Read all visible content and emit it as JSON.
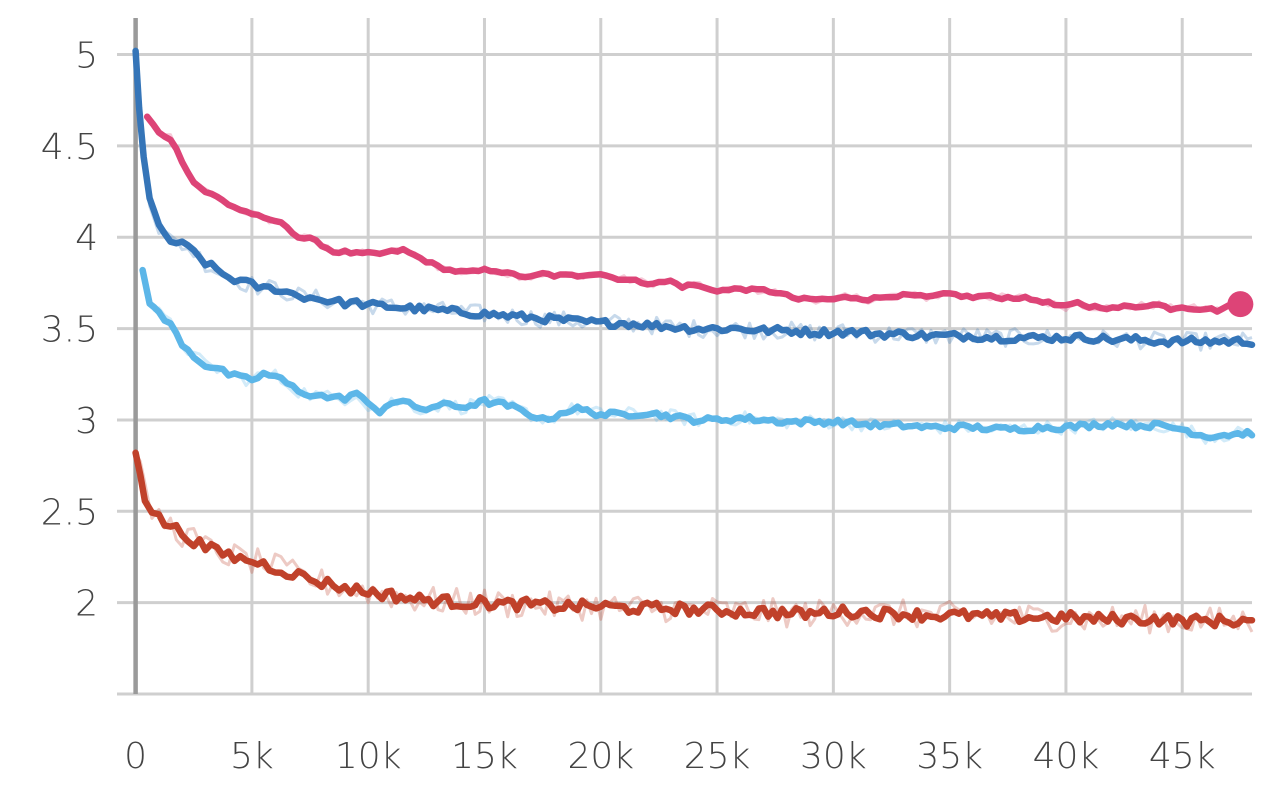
{
  "chart_data": {
    "type": "line",
    "title": "",
    "xlabel": "",
    "ylabel": "",
    "xlim": [
      -800,
      48000
    ],
    "ylim": [
      1.5,
      5.2
    ],
    "grid": true,
    "x_ticks": [
      {
        "value": 0,
        "label": "0"
      },
      {
        "value": 5000,
        "label": "5k"
      },
      {
        "value": 10000,
        "label": "10k"
      },
      {
        "value": 15000,
        "label": "15k"
      },
      {
        "value": 20000,
        "label": "20k"
      },
      {
        "value": 25000,
        "label": "25k"
      },
      {
        "value": 30000,
        "label": "30k"
      },
      {
        "value": 35000,
        "label": "35k"
      },
      {
        "value": 40000,
        "label": "40k"
      },
      {
        "value": 45000,
        "label": "45k"
      }
    ],
    "y_ticks": [
      {
        "value": 5,
        "label": "5"
      },
      {
        "value": 4.5,
        "label": "4.5"
      },
      {
        "value": 4,
        "label": "4"
      },
      {
        "value": 3.5,
        "label": "3.5"
      },
      {
        "value": 3,
        "label": "3"
      },
      {
        "value": 2.5,
        "label": "2.5"
      },
      {
        "value": 2,
        "label": "2"
      }
    ],
    "series": [
      {
        "color": "#dd4477",
        "noise": 0.02,
        "endpoint_marker": true,
        "x": [
          500,
          1000,
          1500,
          2000,
          2500,
          3000,
          3500,
          4000,
          4500,
          5000,
          5500,
          6000,
          6500,
          7000,
          7500,
          8000,
          8500,
          9000,
          9500,
          10000,
          10500,
          11000,
          11500,
          12000,
          12500,
          13000,
          13500,
          14000,
          14500,
          15000,
          15500,
          16000,
          16500,
          17000,
          17500,
          18000,
          18500,
          19000,
          19500,
          20000,
          20500,
          21000,
          21500,
          22000,
          22500,
          23000,
          23500,
          24000,
          24500,
          25000,
          25500,
          26000,
          26500,
          27000,
          27500,
          28000,
          28500,
          29000,
          29500,
          30000,
          30500,
          31000,
          31500,
          32000,
          32500,
          33000,
          33500,
          34000,
          34500,
          35000,
          35500,
          36000,
          36500,
          37000,
          37500,
          38000,
          38500,
          39000,
          39500,
          40000,
          40500,
          41000,
          41500,
          42000,
          42500,
          43000,
          43500,
          44000,
          44500,
          45000,
          45500,
          46000,
          46500,
          47000,
          47500
        ],
        "y": [
          4.66,
          4.57,
          4.54,
          4.42,
          4.3,
          4.25,
          4.22,
          4.18,
          4.15,
          4.13,
          4.1,
          4.09,
          4.06,
          4.0,
          3.99,
          3.96,
          3.92,
          3.92,
          3.91,
          3.91,
          3.91,
          3.92,
          3.93,
          3.9,
          3.87,
          3.84,
          3.82,
          3.81,
          3.81,
          3.82,
          3.82,
          3.8,
          3.79,
          3.78,
          3.8,
          3.79,
          3.79,
          3.79,
          3.8,
          3.8,
          3.78,
          3.77,
          3.76,
          3.75,
          3.75,
          3.76,
          3.73,
          3.74,
          3.72,
          3.71,
          3.71,
          3.72,
          3.71,
          3.71,
          3.7,
          3.68,
          3.66,
          3.66,
          3.66,
          3.66,
          3.67,
          3.67,
          3.66,
          3.67,
          3.68,
          3.68,
          3.68,
          3.67,
          3.68,
          3.69,
          3.68,
          3.67,
          3.68,
          3.67,
          3.67,
          3.67,
          3.66,
          3.65,
          3.63,
          3.62,
          3.64,
          3.62,
          3.62,
          3.61,
          3.62,
          3.62,
          3.63,
          3.63,
          3.61,
          3.62,
          3.61,
          3.61,
          3.6,
          3.62,
          3.63
        ]
      },
      {
        "color": "#3575b8",
        "noise": 0.045,
        "endpoint_marker": false,
        "x": [
          0,
          150,
          350,
          600,
          1000,
          1500,
          2000,
          2500,
          3000,
          3500,
          4000,
          4500,
          5000,
          5500,
          6000,
          6500,
          7000,
          7500,
          8000,
          8500,
          9000,
          9500,
          10000,
          11000,
          12000,
          13000,
          14000,
          15000,
          16000,
          17000,
          18000,
          19000,
          20000,
          21000,
          22000,
          23000,
          24000,
          25000,
          26000,
          27000,
          28000,
          29000,
          30000,
          31000,
          32000,
          33000,
          34000,
          35000,
          36000,
          37000,
          38000,
          39000,
          40000,
          41000,
          42000,
          43000,
          44000,
          45000,
          46000,
          47000,
          48000
        ],
        "y": [
          5.02,
          4.7,
          4.45,
          4.22,
          4.05,
          3.98,
          3.96,
          3.92,
          3.86,
          3.82,
          3.78,
          3.76,
          3.74,
          3.72,
          3.72,
          3.7,
          3.68,
          3.67,
          3.66,
          3.65,
          3.64,
          3.64,
          3.63,
          3.62,
          3.61,
          3.6,
          3.59,
          3.58,
          3.57,
          3.56,
          3.55,
          3.54,
          3.53,
          3.53,
          3.52,
          3.51,
          3.5,
          3.5,
          3.5,
          3.49,
          3.49,
          3.48,
          3.48,
          3.48,
          3.47,
          3.47,
          3.46,
          3.46,
          3.46,
          3.45,
          3.45,
          3.45,
          3.45,
          3.45,
          3.44,
          3.44,
          3.43,
          3.43,
          3.43,
          3.43,
          3.43
        ]
      },
      {
        "color": "#5cb6e8",
        "noise": 0.035,
        "endpoint_marker": false,
        "x": [
          300,
          600,
          1000,
          1500,
          2000,
          2500,
          3000,
          3500,
          4000,
          4500,
          5000,
          5500,
          6000,
          6500,
          7000,
          7500,
          8000,
          8500,
          9000,
          9500,
          10000,
          10500,
          11000,
          11500,
          12000,
          12500,
          13000,
          13500,
          14000,
          15000,
          16000,
          17000,
          17500,
          18000,
          18500,
          19000,
          20000,
          21000,
          22000,
          23000,
          24000,
          25000,
          26000,
          27000,
          28000,
          29000,
          30000,
          31000,
          32000,
          33000,
          34000,
          35000,
          36000,
          37000,
          38000,
          39000,
          40000,
          41000,
          42000,
          43000,
          44000,
          45000,
          46000,
          47000,
          48000
        ],
        "y": [
          3.82,
          3.65,
          3.58,
          3.52,
          3.42,
          3.35,
          3.3,
          3.28,
          3.25,
          3.23,
          3.22,
          3.25,
          3.24,
          3.2,
          3.16,
          3.14,
          3.13,
          3.12,
          3.12,
          3.15,
          3.08,
          3.05,
          3.1,
          3.1,
          3.07,
          3.06,
          3.08,
          3.08,
          3.07,
          3.1,
          3.08,
          3.03,
          3.0,
          3.02,
          3.05,
          3.06,
          3.03,
          3.03,
          3.04,
          3.02,
          3.0,
          3.0,
          3.01,
          3.0,
          2.99,
          2.99,
          2.99,
          2.98,
          2.97,
          2.97,
          2.96,
          2.96,
          2.96,
          2.95,
          2.95,
          2.96,
          2.96,
          2.97,
          2.98,
          2.97,
          2.97,
          2.95,
          2.91,
          2.92,
          2.93
        ]
      },
      {
        "color": "#c0412a",
        "noise": 0.07,
        "endpoint_marker": false,
        "x": [
          0,
          200,
          400,
          700,
          1000,
          1500,
          2000,
          2500,
          3000,
          3500,
          4000,
          4500,
          5000,
          5500,
          6000,
          6500,
          7000,
          7500,
          8000,
          8500,
          9000,
          9500,
          10000,
          11000,
          12000,
          13000,
          14000,
          15000,
          16000,
          17000,
          18000,
          19000,
          20000,
          21000,
          22000,
          23000,
          24000,
          25000,
          26000,
          27000,
          28000,
          29000,
          30000,
          31000,
          32000,
          33000,
          34000,
          35000,
          36000,
          37000,
          38000,
          39000,
          40000,
          41000,
          42000,
          43000,
          44000,
          45000,
          46000,
          47000,
          48000
        ],
        "y": [
          2.82,
          2.72,
          2.58,
          2.5,
          2.46,
          2.42,
          2.38,
          2.34,
          2.3,
          2.28,
          2.26,
          2.24,
          2.23,
          2.21,
          2.19,
          2.17,
          2.15,
          2.13,
          2.11,
          2.1,
          2.08,
          2.07,
          2.06,
          2.04,
          2.02,
          2.01,
          2.0,
          2.0,
          1.99,
          1.99,
          1.98,
          1.98,
          1.98,
          1.97,
          1.97,
          1.97,
          1.96,
          1.96,
          1.95,
          1.95,
          1.94,
          1.94,
          1.95,
          1.95,
          1.94,
          1.94,
          1.93,
          1.93,
          1.93,
          1.92,
          1.92,
          1.92,
          1.92,
          1.91,
          1.91,
          1.91,
          1.91,
          1.9,
          1.9,
          1.9,
          1.9
        ]
      }
    ]
  }
}
